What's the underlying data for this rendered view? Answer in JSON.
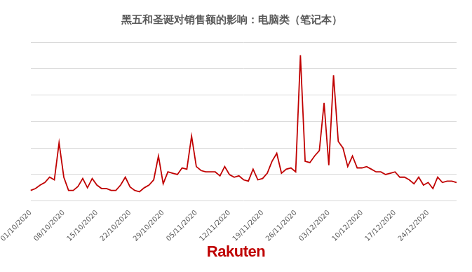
{
  "chart_data": {
    "type": "line",
    "title": "黑五和圣诞对销售额的影响：电脑类（笔记本）",
    "categories": [
      "01/10/2020",
      null,
      null,
      null,
      null,
      null,
      null,
      "08/10/2020",
      null,
      null,
      null,
      null,
      null,
      null,
      "15/10/2020",
      null,
      null,
      null,
      null,
      null,
      null,
      "22/10/2020",
      null,
      null,
      null,
      null,
      null,
      null,
      "29/10/2020",
      null,
      null,
      null,
      null,
      null,
      null,
      "05/11/2020",
      null,
      null,
      null,
      null,
      null,
      null,
      "12/11/2020",
      null,
      null,
      null,
      null,
      null,
      null,
      "19/11/2020",
      null,
      null,
      null,
      null,
      null,
      null,
      "26/11/2020",
      null,
      null,
      null,
      null,
      null,
      null,
      "03/12/2020",
      null,
      null,
      null,
      null,
      null,
      null,
      "10/12/2020",
      null,
      null,
      null,
      null,
      null,
      null,
      "17/12/2020",
      null,
      null,
      null,
      null,
      null,
      null,
      "24/12/2020",
      null,
      null,
      null,
      null,
      null,
      null
    ],
    "values": [
      4,
      4.7,
      6,
      7,
      9,
      8,
      22,
      9,
      4,
      4,
      5.5,
      8.5,
      5,
      8.5,
      6,
      4.7,
      4.7,
      4,
      4,
      6,
      9,
      5.3,
      4,
      3.5,
      5,
      6,
      8,
      17,
      6.5,
      11,
      10.5,
      10,
      12.5,
      12,
      24.5,
      13,
      11.5,
      11,
      11,
      11,
      9.5,
      13,
      10,
      9,
      9.5,
      8,
      7.5,
      12,
      8,
      8.5,
      10.5,
      15,
      18,
      10.5,
      12,
      12.5,
      11,
      55,
      15,
      14.5,
      17,
      19,
      37,
      13.5,
      47.5,
      22.5,
      20,
      13,
      17,
      12.5,
      12.5,
      13,
      12,
      11,
      11,
      10,
      10.5,
      11,
      9,
      9,
      8,
      6.5,
      9,
      6,
      7,
      4.7,
      9,
      7,
      7.5,
      7.5,
      7
    ],
    "color": "#c00000",
    "ylim": [
      0,
      60
    ],
    "yticks": [
      0,
      10,
      20,
      30,
      40,
      50,
      60
    ],
    "grid": true,
    "tick_labels": "x"
  },
  "footer": {
    "logo": "Rakuten"
  }
}
